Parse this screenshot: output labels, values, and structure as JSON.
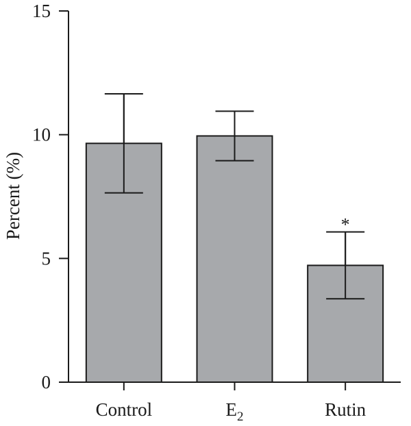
{
  "chart_data": {
    "type": "bar",
    "title": "",
    "xlabel": "",
    "ylabel": "Percent (%)",
    "ylim": [
      0,
      15
    ],
    "yticks": [
      "0",
      "5",
      "10",
      "15"
    ],
    "categories": [
      "Control",
      "E",
      "Rutin"
    ],
    "category_subscripts": [
      "",
      "2",
      ""
    ],
    "values": [
      9.65,
      9.95,
      4.72
    ],
    "errors": [
      2.0,
      1.0,
      1.35
    ],
    "annotations": [
      "",
      "",
      "*"
    ],
    "bar_color": "#a7a9ac",
    "grid": false,
    "legend": "none"
  }
}
